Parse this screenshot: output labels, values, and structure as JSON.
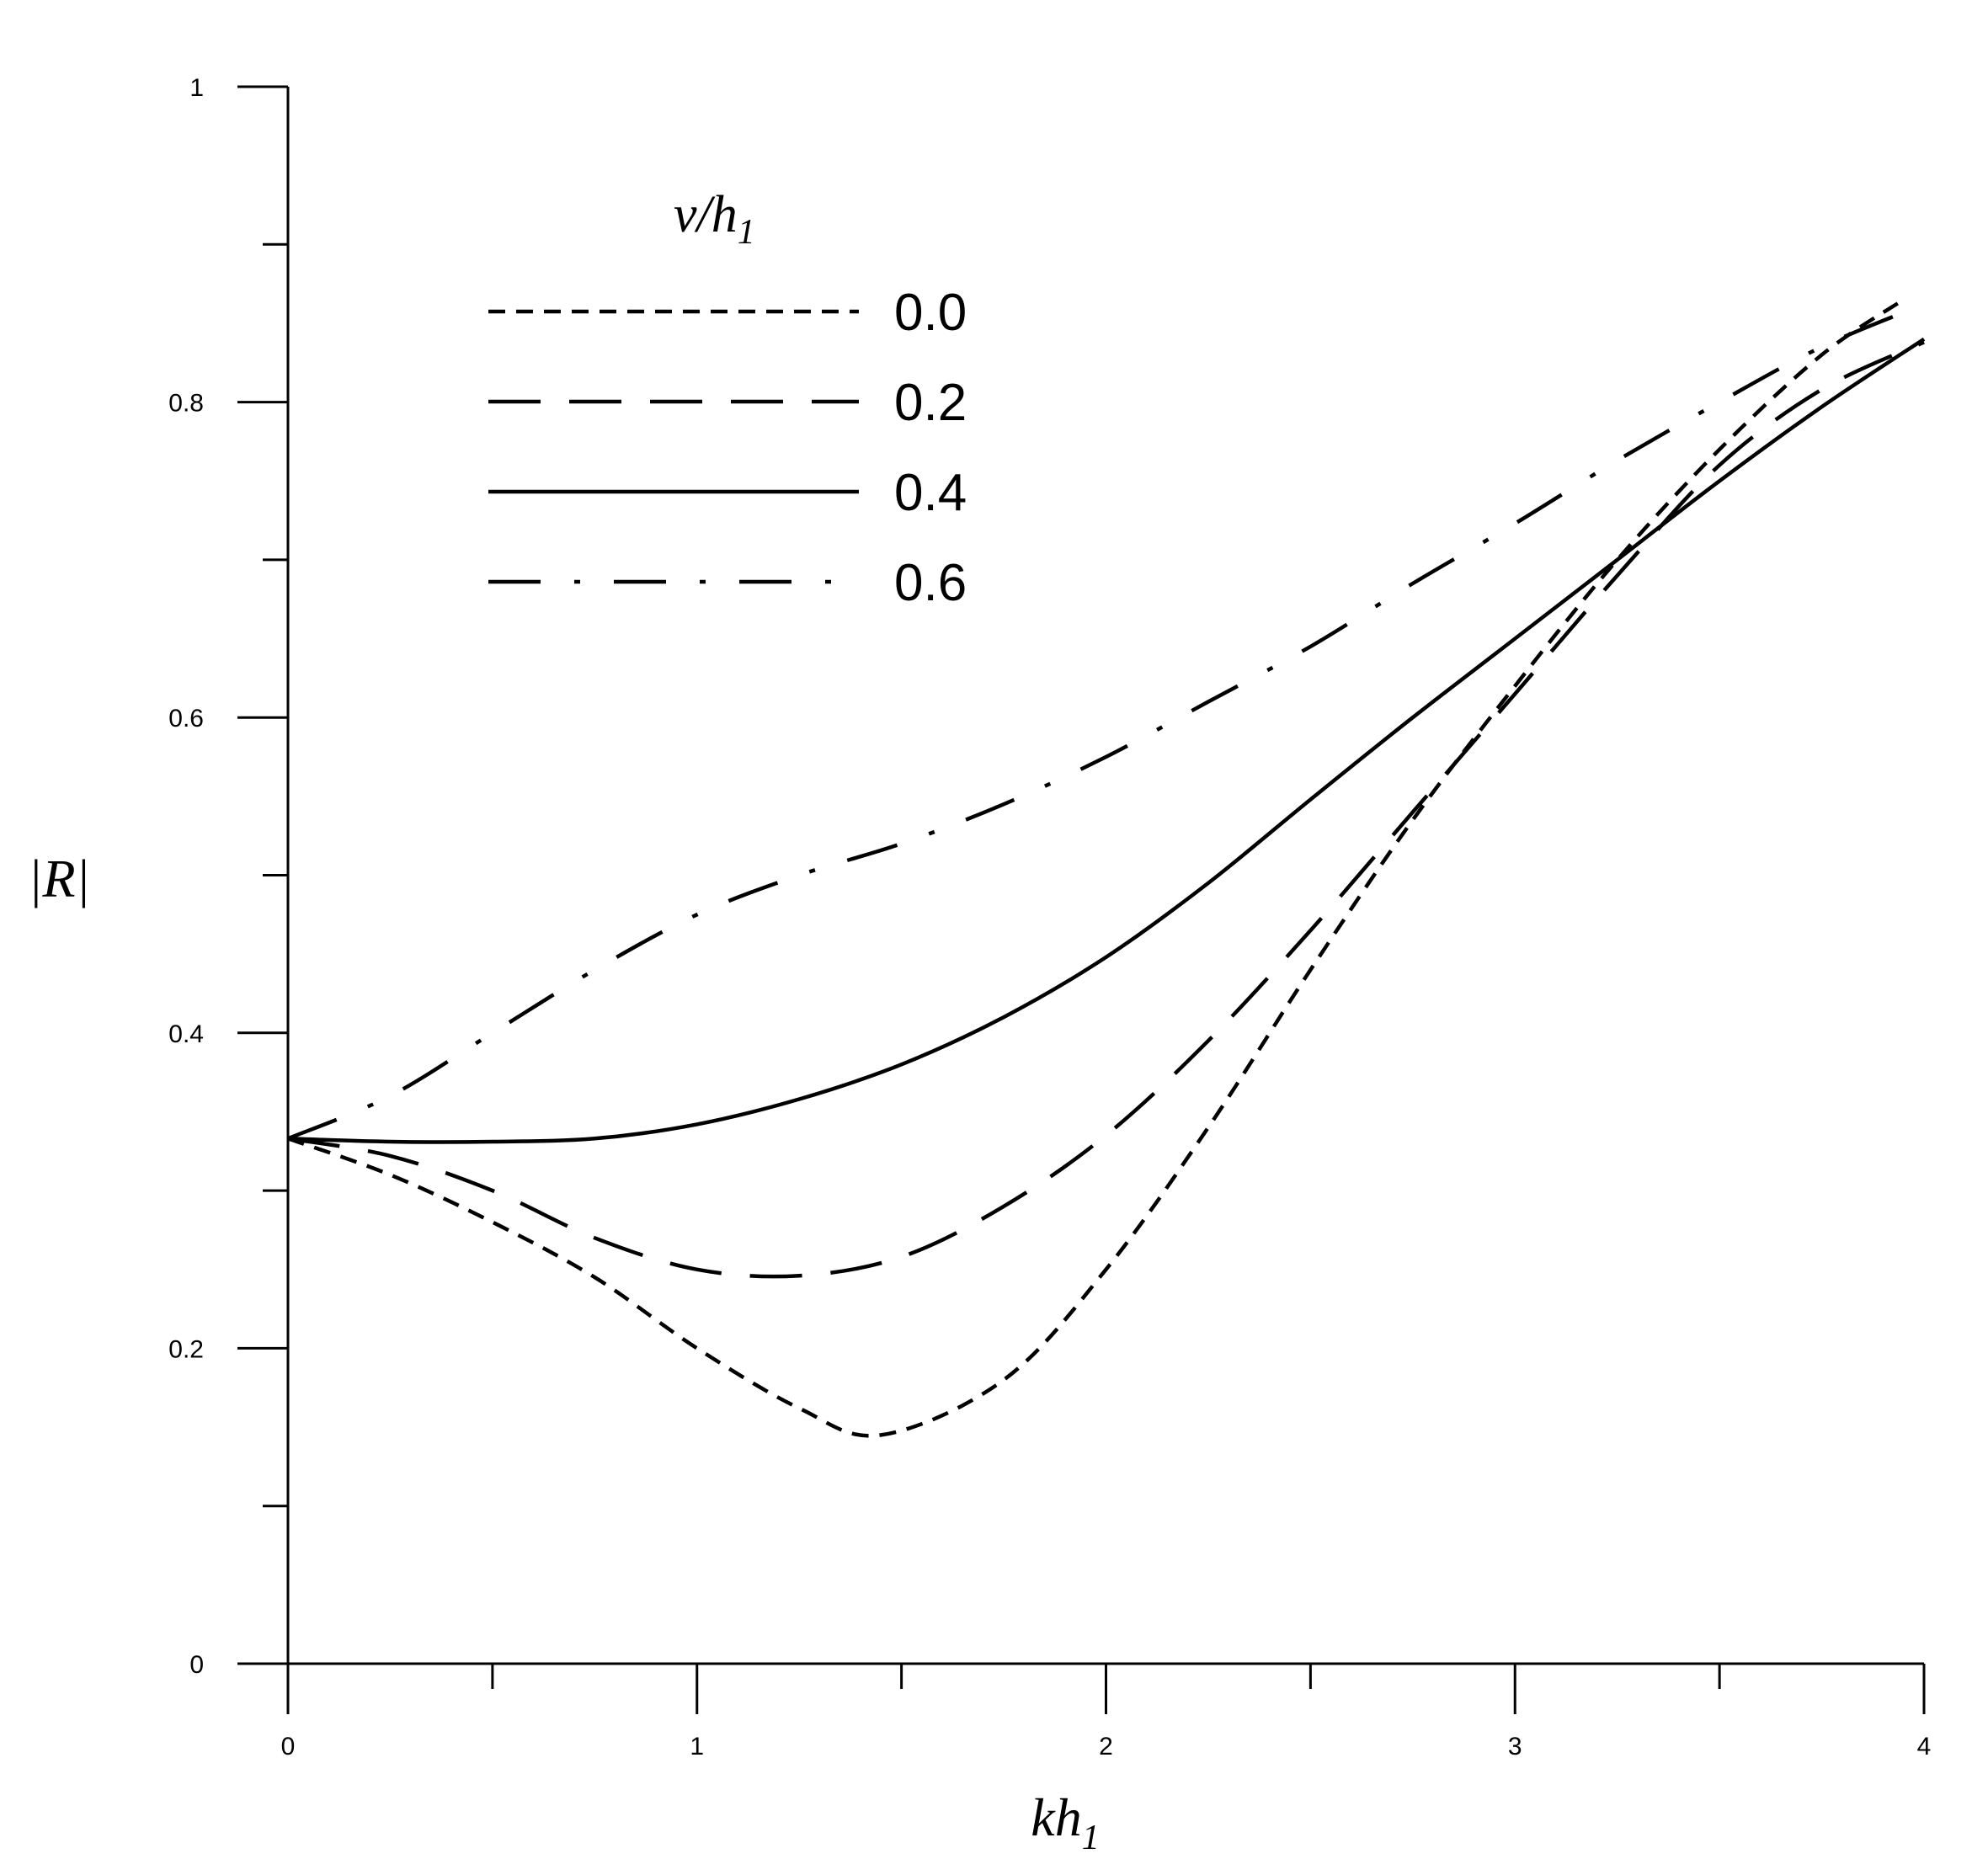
{
  "chart_data": {
    "type": "line",
    "title": "",
    "xlabel": {
      "main": "kh",
      "sub": "1"
    },
    "ylabel": "|R|",
    "xlim": [
      0,
      4
    ],
    "ylim": [
      0,
      1
    ],
    "x_ticks_major": [
      "0",
      "1",
      "2",
      "3",
      "4"
    ],
    "x_ticks_minor": [
      0.5,
      1.5,
      2.5,
      3.5
    ],
    "y_ticks_major": [
      "0",
      "0.2",
      "0.4",
      "0.6",
      "0.8",
      "1"
    ],
    "y_ticks_minor": [
      0.1,
      0.3,
      0.5,
      0.7,
      0.9
    ],
    "grid": false,
    "legend": {
      "title": {
        "main": "v/h",
        "sub": "1"
      },
      "placement": "top-left"
    },
    "series": [
      {
        "name": "0.0",
        "dash": "short-dash",
        "x": [
          0,
          0.25,
          0.5,
          0.75,
          1.0,
          1.25,
          1.45,
          1.75,
          2.0,
          2.25,
          2.5,
          2.75,
          3.0,
          3.25,
          3.5,
          3.75,
          3.95
        ],
        "y": [
          0.333,
          0.31,
          0.28,
          0.245,
          0.2,
          0.162,
          0.145,
          0.18,
          0.25,
          0.34,
          0.44,
          0.535,
          0.62,
          0.7,
          0.77,
          0.83,
          0.865
        ]
      },
      {
        "name": "0.2",
        "dash": "long-dash",
        "x": [
          0,
          0.25,
          0.5,
          0.75,
          1.0,
          1.25,
          1.5,
          1.75,
          2.0,
          2.25,
          2.5,
          2.75,
          3.0,
          3.25,
          3.5,
          3.75,
          4.0
        ],
        "y": [
          0.333,
          0.322,
          0.3,
          0.27,
          0.25,
          0.246,
          0.258,
          0.29,
          0.335,
          0.395,
          0.465,
          0.54,
          0.615,
          0.69,
          0.76,
          0.808,
          0.838
        ]
      },
      {
        "name": "0.4",
        "dash": "solid",
        "x": [
          0,
          0.25,
          0.5,
          0.75,
          1.0,
          1.25,
          1.5,
          1.75,
          2.0,
          2.25,
          2.5,
          2.75,
          3.0,
          3.25,
          3.5,
          3.75,
          4.0
        ],
        "y": [
          0.333,
          0.331,
          0.331,
          0.333,
          0.342,
          0.358,
          0.38,
          0.41,
          0.448,
          0.495,
          0.548,
          0.6,
          0.65,
          0.7,
          0.75,
          0.797,
          0.84
        ]
      },
      {
        "name": "0.6",
        "dash": "dash-dot",
        "x": [
          0,
          0.25,
          0.5,
          0.75,
          1.0,
          1.25,
          1.5,
          1.75,
          2.0,
          2.25,
          2.5,
          2.75,
          3.0,
          3.25,
          3.5,
          3.75,
          4.0
        ],
        "y": [
          0.333,
          0.36,
          0.4,
          0.44,
          0.475,
          0.5,
          0.52,
          0.545,
          0.575,
          0.61,
          0.645,
          0.685,
          0.723,
          0.763,
          0.8,
          0.835,
          0.862
        ]
      }
    ]
  }
}
